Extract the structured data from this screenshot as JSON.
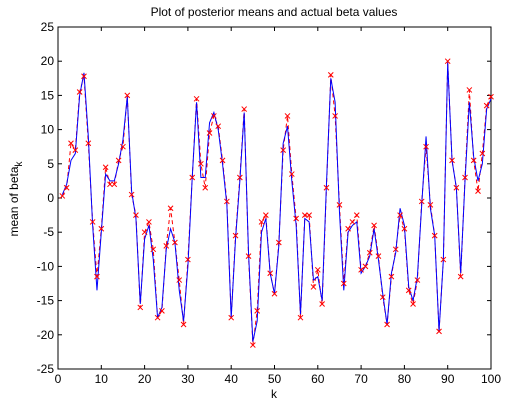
{
  "chart_data": {
    "type": "line",
    "title": "Plot of posterior means and actual beta values",
    "xlabel": "k",
    "ylabel": {
      "main": "mean of beta",
      "subscript": "k"
    },
    "xlim": [
      0,
      100
    ],
    "ylim": [
      -25,
      25
    ],
    "x_ticks": [
      0,
      10,
      20,
      30,
      40,
      50,
      60,
      70,
      80,
      90,
      100
    ],
    "y_ticks": [
      25,
      20,
      15,
      10,
      5,
      0,
      -5,
      -10,
      -15,
      -20,
      -25
    ],
    "grid": false,
    "legend": false,
    "x": [
      1,
      2,
      3,
      4,
      5,
      6,
      7,
      8,
      9,
      10,
      11,
      12,
      13,
      14,
      15,
      16,
      17,
      18,
      19,
      20,
      21,
      22,
      23,
      24,
      25,
      26,
      27,
      28,
      29,
      30,
      31,
      32,
      33,
      34,
      35,
      36,
      37,
      38,
      39,
      40,
      41,
      42,
      43,
      44,
      45,
      46,
      47,
      48,
      49,
      50,
      51,
      52,
      53,
      54,
      55,
      56,
      57,
      58,
      59,
      60,
      61,
      62,
      63,
      64,
      65,
      66,
      67,
      68,
      69,
      70,
      71,
      72,
      73,
      74,
      75,
      76,
      77,
      78,
      79,
      80,
      81,
      82,
      83,
      84,
      85,
      86,
      87,
      88,
      89,
      90,
      91,
      92,
      93,
      94,
      95,
      96,
      97,
      98,
      99,
      100
    ],
    "series": [
      {
        "style": "solid-line",
        "color": "#0000ff",
        "values": [
          0.5,
          2.0,
          5.5,
          6.5,
          15.0,
          18.3,
          9.0,
          -4.0,
          -13.5,
          -5.0,
          3.5,
          2.5,
          2.5,
          5.0,
          8.5,
          14.8,
          1.0,
          -3.0,
          -15.5,
          -6.0,
          -4.0,
          -9.0,
          -17.5,
          -16.0,
          -7.5,
          -4.5,
          -6.5,
          -13.5,
          -18.0,
          -10.0,
          3.0,
          14.0,
          3.0,
          3.0,
          11.0,
          12.5,
          10.0,
          5.0,
          -1.0,
          -17.5,
          -6.0,
          2.5,
          12.5,
          -8.0,
          -21.0,
          -18.0,
          -5.0,
          -3.0,
          -11.0,
          -14.0,
          -7.0,
          8.0,
          10.5,
          2.5,
          -4.0,
          -17.0,
          -3.0,
          -3.5,
          -12.0,
          -11.5,
          -15.0,
          2.0,
          17.5,
          14.0,
          -2.0,
          -13.5,
          -5.0,
          -4.0,
          -3.5,
          -11.0,
          -10.0,
          -8.5,
          -4.5,
          -9.0,
          -14.0,
          -18.5,
          -11.0,
          -8.0,
          -1.5,
          -4.0,
          -13.0,
          -15.0,
          -11.5,
          -1.0,
          9.0,
          -1.5,
          -5.5,
          -19.5,
          -9.0,
          19.8,
          5.5,
          1.5,
          -11.0,
          2.5,
          14.0,
          6.0,
          2.5,
          5.0,
          13.0,
          14.5
        ]
      },
      {
        "style": "dashed-line-x-markers",
        "color": "#ff0000",
        "values": [
          0.3,
          1.5,
          8.0,
          7.0,
          15.5,
          17.8,
          8.0,
          -3.5,
          -11.5,
          -4.5,
          4.5,
          2.0,
          2.0,
          5.5,
          7.5,
          15.0,
          0.5,
          -2.5,
          -16.0,
          -5.0,
          -3.5,
          -7.5,
          -17.5,
          -16.5,
          -7.0,
          -1.5,
          -6.5,
          -12.0,
          -18.5,
          -9.0,
          3.0,
          14.5,
          5.0,
          1.5,
          9.5,
          12.0,
          10.5,
          5.5,
          -0.5,
          -17.5,
          -5.5,
          3.0,
          13.0,
          -8.5,
          -21.5,
          -16.5,
          -3.5,
          -2.5,
          -11.0,
          -14.0,
          -6.5,
          7.0,
          12.0,
          3.5,
          -3.0,
          -17.5,
          -2.5,
          -2.5,
          -13.0,
          -10.5,
          -15.5,
          1.5,
          18.0,
          12.0,
          -1.0,
          -12.5,
          -4.5,
          -3.5,
          -2.5,
          -10.5,
          -10.0,
          -8.0,
          -4.0,
          -8.5,
          -14.5,
          -18.5,
          -11.5,
          -7.5,
          -2.5,
          -4.5,
          -13.5,
          -15.5,
          -12.0,
          -0.5,
          7.5,
          -1.0,
          -5.5,
          -19.5,
          -9.0,
          20.0,
          5.5,
          1.5,
          -11.5,
          3.0,
          15.8,
          5.5,
          1.0,
          6.5,
          13.5,
          14.8
        ]
      }
    ],
    "colors": {
      "line": "#0000ff",
      "markers": "#ff0000",
      "axes": "#000000",
      "background": "#ffffff"
    }
  }
}
